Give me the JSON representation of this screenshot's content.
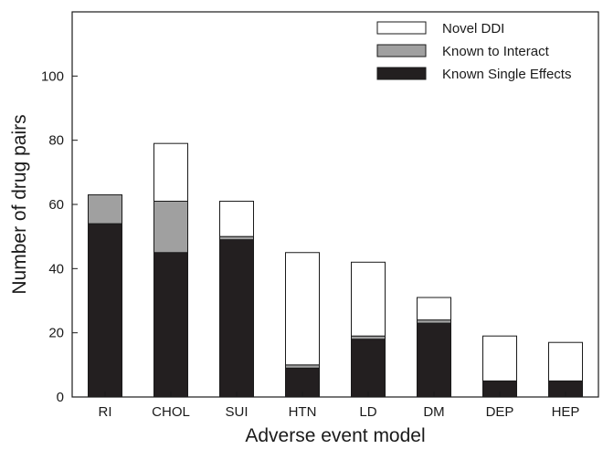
{
  "chart_data": {
    "type": "bar",
    "stacked": true,
    "categories": [
      "RI",
      "CHOL",
      "SUI",
      "HTN",
      "LD",
      "DM",
      "DEP",
      "HEP"
    ],
    "series": [
      {
        "name": "Known Single Effects",
        "values": [
          54,
          45,
          49,
          9,
          18,
          23,
          5,
          5
        ],
        "color": "#231f20"
      },
      {
        "name": "Known to Interact",
        "values": [
          9,
          16,
          1,
          1,
          1,
          1,
          0,
          0
        ],
        "color": "#a0a0a0"
      },
      {
        "name": "Novel DDI",
        "values": [
          0,
          18,
          11,
          35,
          23,
          7,
          14,
          12
        ],
        "color": "#ffffff"
      }
    ],
    "legend_order": [
      "Novel DDI",
      "Known to Interact",
      "Known Single Effects"
    ],
    "xlabel": "Adverse event model",
    "ylabel": "Number of drug pairs",
    "ylim": [
      0,
      120
    ],
    "yticks": [
      0,
      20,
      40,
      60,
      80,
      100
    ],
    "grid": false,
    "legend_position": "top-right"
  }
}
